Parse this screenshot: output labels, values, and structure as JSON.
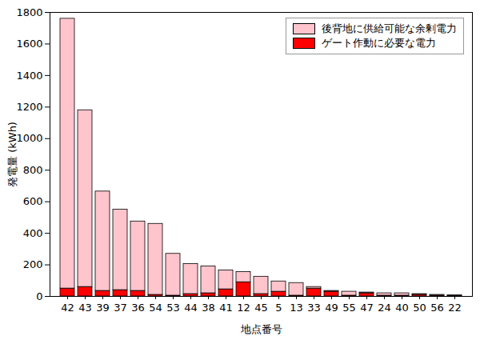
{
  "chart_data": {
    "type": "bar",
    "stacked": true,
    "grid": false,
    "legend": "top-right",
    "x_label": "地点番号",
    "y_label": "発電量 (kWh)",
    "categories": [
      "42",
      "43",
      "39",
      "37",
      "36",
      "54",
      "53",
      "44",
      "38",
      "41",
      "12",
      "45",
      "5",
      "13",
      "33",
      "49",
      "55",
      "47",
      "24",
      "40",
      "50",
      "56",
      "22"
    ],
    "series": [
      {
        "name": "後背地に供給可能な余剰電力",
        "color": "#ffc4cc",
        "values": [
          1710,
          1120,
          630,
          510,
          440,
          450,
          265,
          190,
          170,
          120,
          65,
          110,
          65,
          80,
          10,
          5,
          25,
          5,
          15,
          15,
          5,
          5,
          5
        ]
      },
      {
        "name": "ゲート作動に必要な電力",
        "color": "#ff0000",
        "values": [
          50,
          60,
          35,
          40,
          35,
          10,
          5,
          15,
          20,
          45,
          90,
          15,
          30,
          5,
          50,
          30,
          5,
          20,
          5,
          5,
          10,
          5,
          3
        ]
      }
    ],
    "ylim": [
      0,
      1800
    ],
    "yticks": [
      0,
      200,
      400,
      600,
      800,
      1000,
      1200,
      1400,
      1600,
      1800
    ]
  }
}
